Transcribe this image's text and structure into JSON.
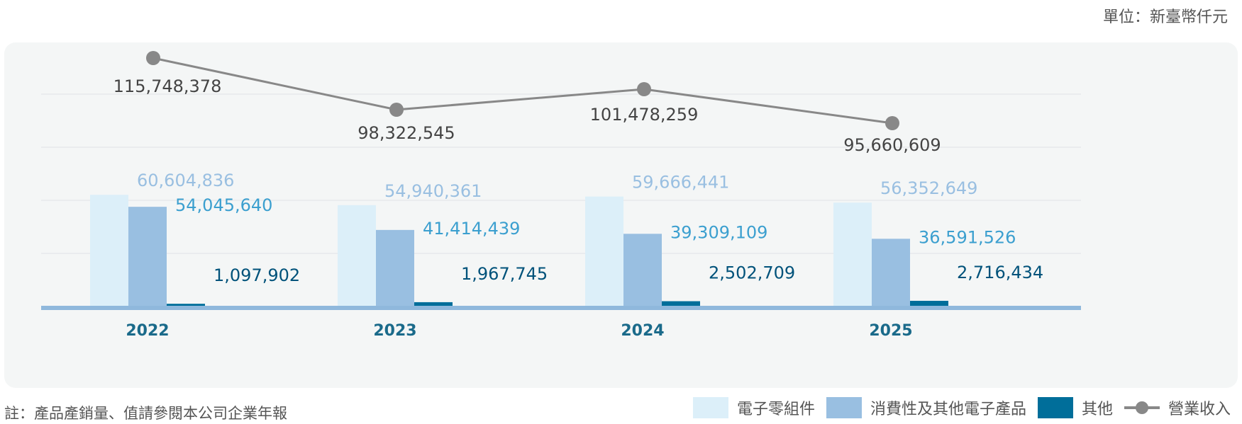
{
  "unit_note": "單位：新臺幣仟元",
  "footnote": "註：產品產銷量、值請參閱本公司企業年報",
  "colors": {
    "series_1": "#dceff9",
    "series_2": "#99bfe1",
    "series_3": "#006e9a",
    "line": "#888888",
    "label_series_1": "#99bfe1",
    "label_series_2": "#3b9fcf",
    "label_series_3": "#00527a",
    "category_label": "#1a6a8a",
    "baseline": "#8fb8dc",
    "grid": "#dfe3e6",
    "line_label": "#444444"
  },
  "legend": {
    "items": [
      {
        "label": "電子零組件",
        "color": "#dceff9"
      },
      {
        "label": "消費性及其他電子產品",
        "color": "#99bfe1"
      },
      {
        "label": "其他",
        "color": "#006e9a"
      }
    ],
    "line_label": "營業收入"
  },
  "chart_data": {
    "type": "bar",
    "categories": [
      "2022",
      "2023",
      "2024",
      "2025"
    ],
    "series": [
      {
        "name": "電子零組件",
        "values": [
          60604836,
          54940361,
          59666441,
          56352649
        ],
        "labels": [
          "60,604,836",
          "54,940,361",
          "59,666,441",
          "56,352,649"
        ]
      },
      {
        "name": "消費性及其他電子產品",
        "values": [
          54045640,
          41414439,
          39309109,
          36591526
        ],
        "labels": [
          "54,045,640",
          "41,414,439",
          "39,309,109",
          "36,591,526"
        ]
      },
      {
        "name": "其他",
        "values": [
          1097902,
          1967745,
          2502709,
          2716434
        ],
        "labels": [
          "1,097,902",
          "1,967,745",
          "2,502,709",
          "2,716,434"
        ]
      }
    ],
    "line_series": {
      "name": "營業收入",
      "values": [
        115748378,
        98322545,
        101478259,
        95660609
      ],
      "labels": [
        "115,748,378",
        "98,322,545",
        "101,478,259",
        "95,660,609"
      ]
    },
    "ylim": [
      0,
      130000000
    ],
    "grid": true,
    "legend_position": "bottom-right"
  }
}
